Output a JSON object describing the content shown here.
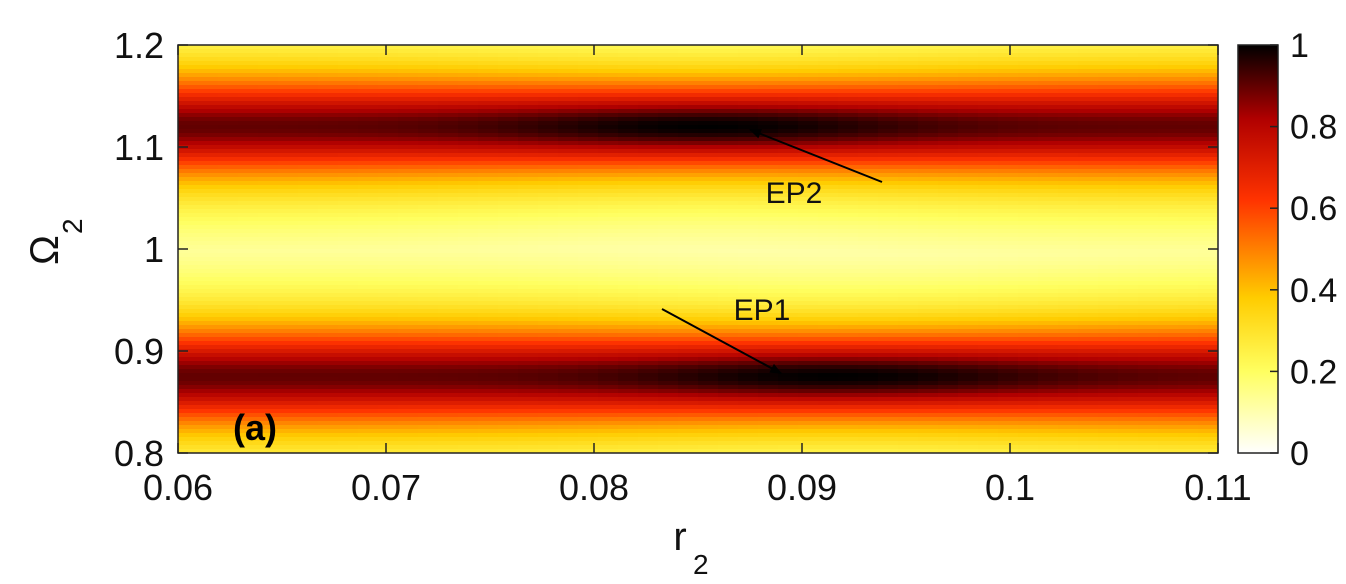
{
  "chart_data": {
    "type": "heatmap",
    "title": "",
    "xlabel": {
      "main": "r",
      "sub": "2"
    },
    "ylabel": {
      "main": "Ω",
      "sub": "2"
    },
    "xlim": [
      0.06,
      0.11
    ],
    "ylim": [
      0.8,
      1.2
    ],
    "xticks": [
      0.06,
      0.07,
      0.08,
      0.09,
      0.1,
      0.11
    ],
    "xtick_labels": [
      "0.06",
      "0.07",
      "0.08",
      "0.09",
      "0.1",
      "0.11"
    ],
    "yticks": [
      0.8,
      0.9,
      1.0,
      1.1,
      1.2
    ],
    "ytick_labels": [
      "0.8",
      "0.9",
      "1",
      "1.1",
      "1.2"
    ],
    "colormap": "hot (reversed): 0 = white, 1 = black",
    "colorbar": {
      "range": [
        0,
        1
      ],
      "ticks": [
        0,
        0.2,
        0.4,
        0.6,
        0.8,
        1
      ],
      "tick_labels": [
        "0",
        "0.2",
        "0.4",
        "0.6",
        "0.8",
        "1"
      ]
    },
    "bands": [
      {
        "omega_center": 0.875,
        "r_peak": 0.0915,
        "peak_value": 1.0
      },
      {
        "omega_center": 1.12,
        "r_peak": 0.0855,
        "peak_value": 1.0
      }
    ],
    "annotations": [
      {
        "text": "EP1",
        "point_x": 0.089,
        "point_y": 0.878
      },
      {
        "text": "EP2",
        "point_x": 0.0875,
        "point_y": 1.117
      }
    ],
    "panel_label": "(a)",
    "grid": false
  }
}
